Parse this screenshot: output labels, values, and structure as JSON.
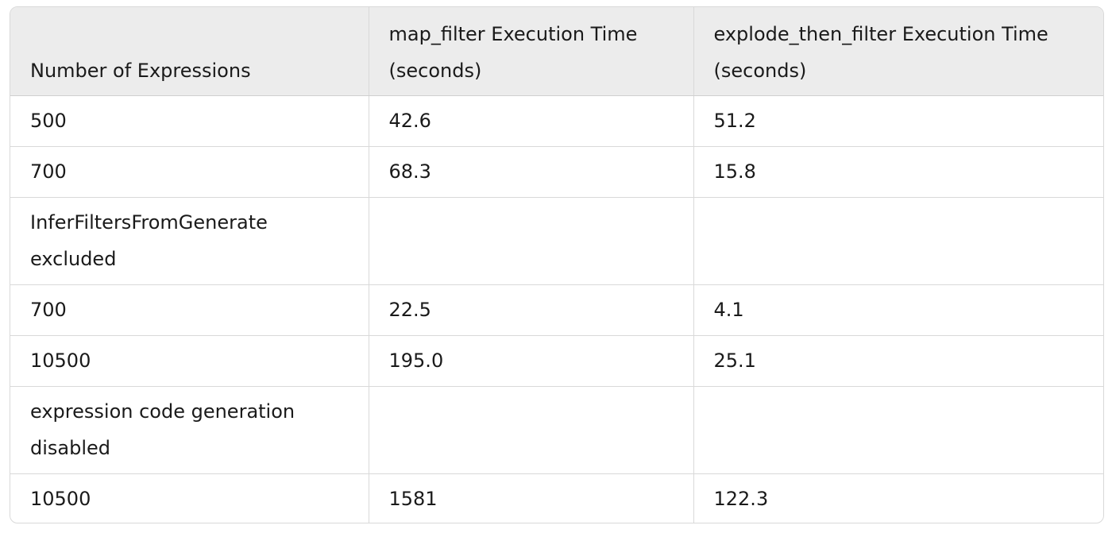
{
  "table": {
    "headers": [
      "Number of Expressions",
      "map_filter Execution Time (seconds)",
      "explode_then_filter Execution Time (seconds)"
    ],
    "rows": [
      [
        "500",
        "42.6",
        "51.2"
      ],
      [
        "700",
        "68.3",
        "15.8"
      ],
      [
        "InferFiltersFromGenerate excluded",
        "",
        ""
      ],
      [
        "700",
        "22.5",
        "4.1"
      ],
      [
        "10500",
        "195.0",
        "25.1"
      ],
      [
        "expression code generation disabled",
        "",
        ""
      ],
      [
        "10500",
        "1581",
        "122.3"
      ]
    ]
  }
}
